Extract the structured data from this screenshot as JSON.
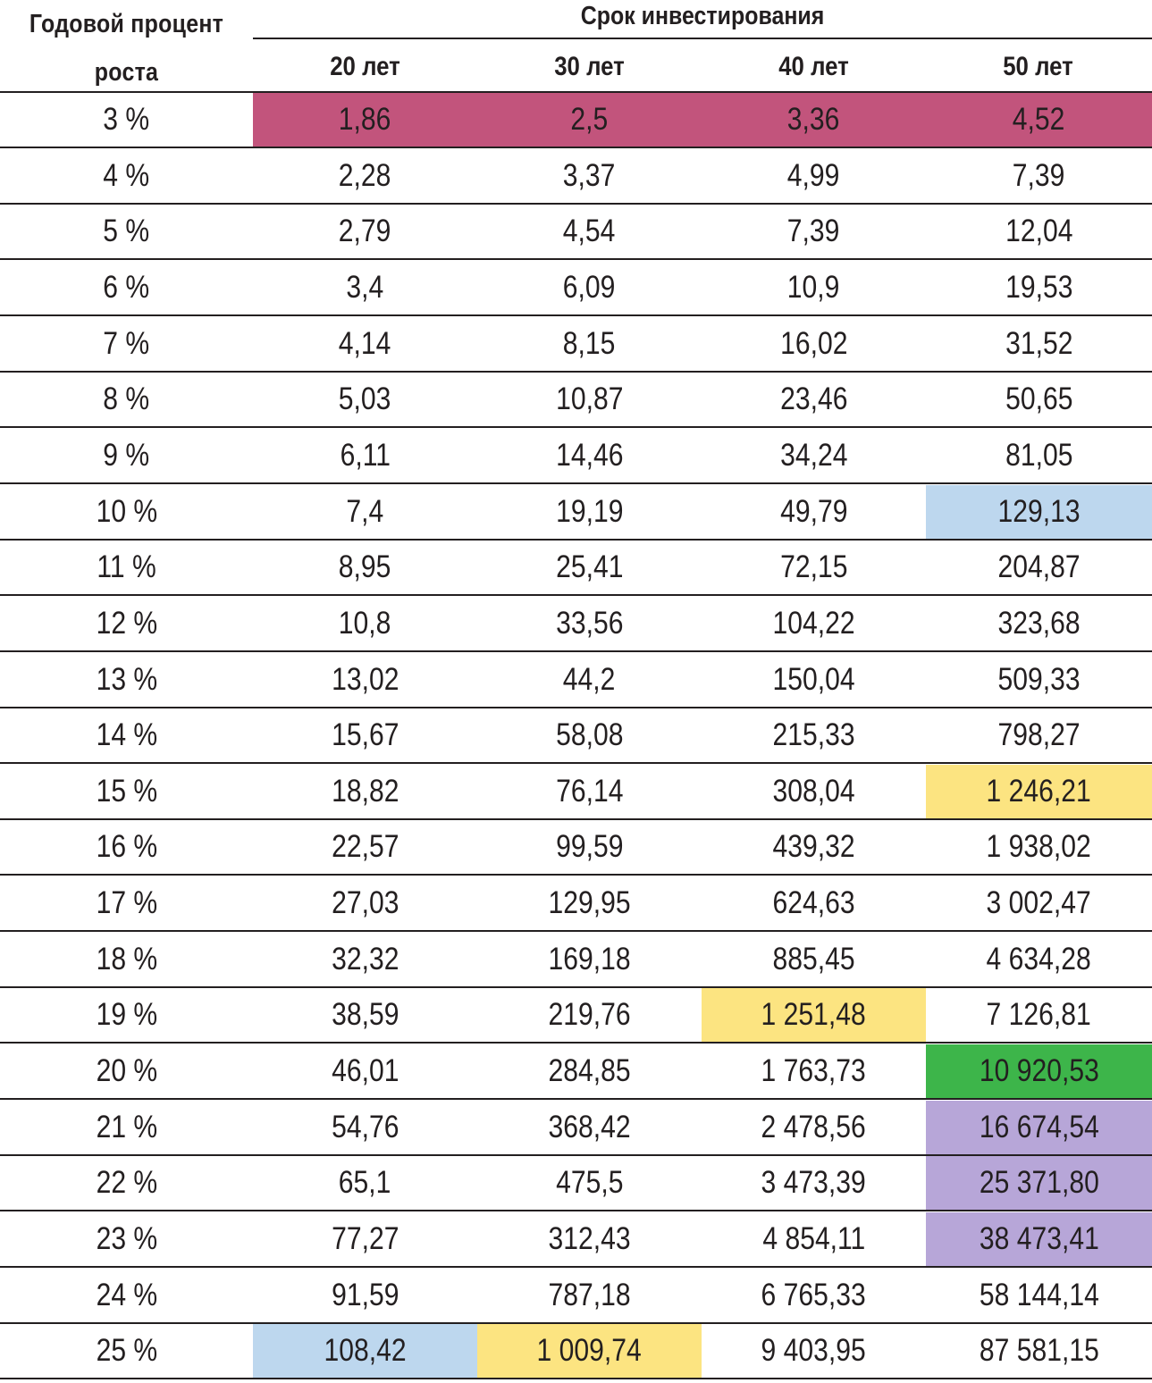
{
  "header": {
    "rate_line1": "Годовой процент",
    "rate_line2": "роста",
    "term_title": "Срок инвестирования",
    "columns": [
      "20 лет",
      "30 лет",
      "40 лет",
      "50 лет"
    ]
  },
  "colors": {
    "crimson": "#c2547c",
    "blue": "#bdd7ee",
    "yellow": "#fce481",
    "green": "#3db54a",
    "purple": "#b7a6d8",
    "rule": "#231f20"
  },
  "rows": [
    {
      "rate": "3 %",
      "values": [
        "1,86",
        "2,5",
        "3,36",
        "4,52"
      ],
      "highlights": [
        "crimson",
        "crimson",
        "crimson",
        "crimson"
      ]
    },
    {
      "rate": "4 %",
      "values": [
        "2,28",
        "3,37",
        "4,99",
        "7,39"
      ],
      "highlights": [
        null,
        null,
        null,
        null
      ]
    },
    {
      "rate": "5 %",
      "values": [
        "2,79",
        "4,54",
        "7,39",
        "12,04"
      ],
      "highlights": [
        null,
        null,
        null,
        null
      ]
    },
    {
      "rate": "6 %",
      "values": [
        "3,4",
        "6,09",
        "10,9",
        "19,53"
      ],
      "highlights": [
        null,
        null,
        null,
        null
      ]
    },
    {
      "rate": "7 %",
      "values": [
        "4,14",
        "8,15",
        "16,02",
        "31,52"
      ],
      "highlights": [
        null,
        null,
        null,
        null
      ]
    },
    {
      "rate": "8 %",
      "values": [
        "5,03",
        "10,87",
        "23,46",
        "50,65"
      ],
      "highlights": [
        null,
        null,
        null,
        null
      ]
    },
    {
      "rate": "9 %",
      "values": [
        "6,11",
        "14,46",
        "34,24",
        "81,05"
      ],
      "highlights": [
        null,
        null,
        null,
        null
      ]
    },
    {
      "rate": "10 %",
      "values": [
        "7,4",
        "19,19",
        "49,79",
        "129,13"
      ],
      "highlights": [
        null,
        null,
        null,
        "blue"
      ]
    },
    {
      "rate": "11 %",
      "values": [
        "8,95",
        "25,41",
        "72,15",
        "204,87"
      ],
      "highlights": [
        null,
        null,
        null,
        null
      ]
    },
    {
      "rate": "12 %",
      "values": [
        "10,8",
        "33,56",
        "104,22",
        "323,68"
      ],
      "highlights": [
        null,
        null,
        null,
        null
      ]
    },
    {
      "rate": "13 %",
      "values": [
        "13,02",
        "44,2",
        "150,04",
        "509,33"
      ],
      "highlights": [
        null,
        null,
        null,
        null
      ]
    },
    {
      "rate": "14 %",
      "values": [
        "15,67",
        "58,08",
        "215,33",
        "798,27"
      ],
      "highlights": [
        null,
        null,
        null,
        null
      ]
    },
    {
      "rate": "15 %",
      "values": [
        "18,82",
        "76,14",
        "308,04",
        "1 246,21"
      ],
      "highlights": [
        null,
        null,
        null,
        "yellow"
      ]
    },
    {
      "rate": "16 %",
      "values": [
        "22,57",
        "99,59",
        "439,32",
        "1 938,02"
      ],
      "highlights": [
        null,
        null,
        null,
        null
      ]
    },
    {
      "rate": "17 %",
      "values": [
        "27,03",
        "129,95",
        "624,63",
        "3 002,47"
      ],
      "highlights": [
        null,
        null,
        null,
        null
      ]
    },
    {
      "rate": "18 %",
      "values": [
        "32,32",
        "169,18",
        "885,45",
        "4 634,28"
      ],
      "highlights": [
        null,
        null,
        null,
        null
      ]
    },
    {
      "rate": "19 %",
      "values": [
        "38,59",
        "219,76",
        "1 251,48",
        "7 126,81"
      ],
      "highlights": [
        null,
        null,
        "yellow",
        null
      ]
    },
    {
      "rate": "20 %",
      "values": [
        "46,01",
        "284,85",
        "1 763,73",
        "10 920,53"
      ],
      "highlights": [
        null,
        null,
        null,
        "green"
      ]
    },
    {
      "rate": "21 %",
      "values": [
        "54,76",
        "368,42",
        "2 478,56",
        "16 674,54"
      ],
      "highlights": [
        null,
        null,
        null,
        "purple"
      ]
    },
    {
      "rate": "22 %",
      "values": [
        "65,1",
        "475,5",
        "3 473,39",
        "25 371,80"
      ],
      "highlights": [
        null,
        null,
        null,
        "purple"
      ]
    },
    {
      "rate": "23 %",
      "values": [
        "77,27",
        "312,43",
        "4 854,11",
        "38 473,41"
      ],
      "highlights": [
        null,
        null,
        null,
        "purple"
      ]
    },
    {
      "rate": "24 %",
      "values": [
        "91,59",
        "787,18",
        "6 765,33",
        "58 144,14"
      ],
      "highlights": [
        null,
        null,
        null,
        null
      ]
    },
    {
      "rate": "25 %",
      "values": [
        "108,42",
        "1 009,74",
        "9 403,95",
        "87 581,15"
      ],
      "highlights": [
        "blue",
        "yellow",
        null,
        null
      ]
    }
  ]
}
